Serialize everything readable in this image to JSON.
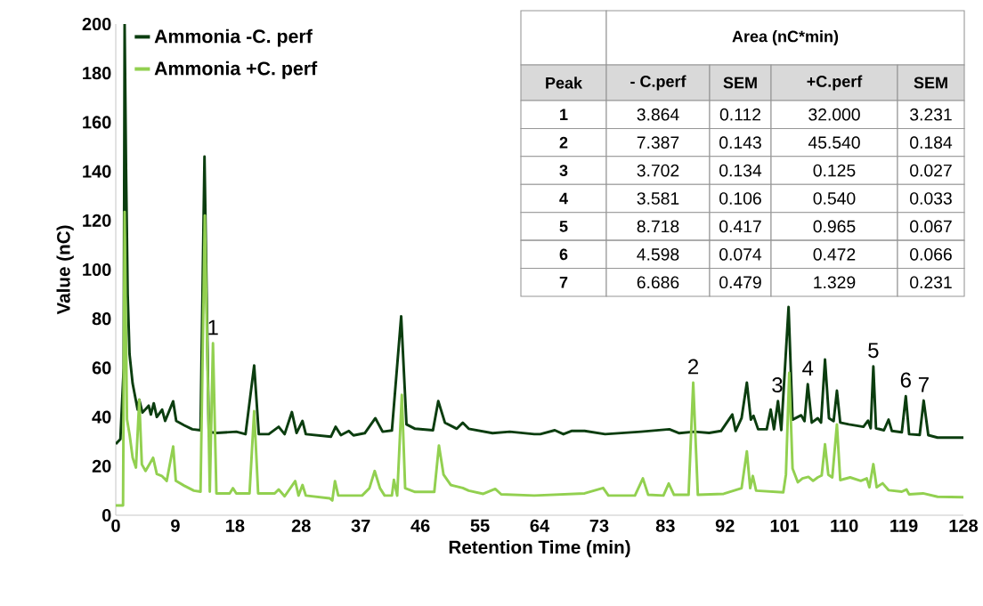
{
  "chart_data": {
    "type": "line",
    "xlabel": "Retention Time (min)",
    "ylabel": "Value (nC)",
    "xlim": [
      0,
      128
    ],
    "ylim": [
      0,
      200
    ],
    "xticks": [
      0,
      9,
      18,
      28,
      37,
      46,
      55,
      64,
      73,
      83,
      92,
      101,
      110,
      119,
      128
    ],
    "yticks": [
      0,
      20,
      40,
      60,
      80,
      100,
      120,
      140,
      160,
      180,
      200
    ],
    "grid": false,
    "legend": "top left",
    "marker": "none",
    "line_style": "solid",
    "series": [
      {
        "name": "Ammonia -C. perf",
        "color": "#0b3d0f",
        "x": [
          0,
          0.7,
          1.2,
          1.34,
          1.55,
          1.8,
          2.08,
          2.55,
          3.3,
          3.55,
          4.03,
          4.97,
          5.3,
          5.74,
          6.2,
          7.0,
          7.46,
          8.67,
          9.13,
          10.35,
          11.56,
          12.8,
          13.4,
          14.05,
          15.27,
          18.2,
          19.6,
          20.9,
          21.6,
          23.1,
          24.6,
          25.5,
          26.6,
          27.3,
          28.2,
          28.7,
          32.5,
          33.2,
          34.0,
          35.2,
          35.9,
          37.6,
          39.2,
          40.3,
          41.7,
          43.1,
          43.9,
          45.2,
          47.9,
          48.7,
          49.7,
          51.5,
          52.4,
          53.3,
          56.9,
          59.5,
          63.2,
          64.1,
          66.3,
          67.6,
          68.8,
          70.8,
          73.9,
          79.3,
          83.6,
          85.1,
          87.4,
          89.6,
          91.4,
          93.1,
          93.6,
          94.5,
          95.3,
          95.9,
          96.3,
          97.0,
          98.3,
          98.9,
          99.4,
          100.0,
          100.5,
          101.6,
          102.2,
          103.5,
          104.0,
          104.5,
          105.1,
          106.0,
          106.5,
          107.1,
          107.7,
          108.4,
          108.9,
          109.4,
          110.7,
          112.9,
          113.6,
          114.0,
          114.4,
          114.8,
          116.0,
          116.7,
          117.2,
          118.7,
          119.3,
          119.8,
          121.4,
          122.0,
          122.7,
          124.1,
          128
        ],
        "values": [
          29,
          31,
          60,
          200,
          142,
          90,
          65.6,
          53.6,
          43,
          47,
          41.8,
          44.6,
          41,
          45.6,
          40,
          43,
          38.4,
          46.4,
          38.4,
          36.6,
          35,
          34.6,
          146,
          33.9,
          33.5,
          34,
          33,
          61,
          33,
          33,
          36,
          33,
          42,
          33.5,
          38.4,
          33,
          32,
          36,
          32.6,
          34.3,
          32.5,
          33.4,
          39.5,
          34,
          34.5,
          81,
          37,
          35.2,
          34.6,
          46.5,
          37.7,
          35.2,
          37.7,
          35.2,
          33.4,
          34,
          33,
          33,
          34.6,
          33,
          34.3,
          34.3,
          33,
          34,
          35,
          33.4,
          34,
          33.5,
          34.3,
          41,
          34.3,
          39.5,
          54,
          38.9,
          40.5,
          35,
          35,
          43,
          35,
          46.5,
          34.7,
          84.8,
          38.9,
          40.7,
          38.3,
          53.4,
          37.7,
          39.5,
          37.7,
          63.4,
          39.5,
          38.3,
          50.7,
          37.7,
          37,
          36,
          38.5,
          35.4,
          60.6,
          35.4,
          34.6,
          38.9,
          34.3,
          33.8,
          48.5,
          33,
          32.7,
          46.7,
          32.6,
          31.6,
          31.6
        ]
      },
      {
        "name": "Ammonia +C. perf",
        "color": "#92d050",
        "x": [
          0,
          1.1,
          1.34,
          1.7,
          2.1,
          2.55,
          3.05,
          3.55,
          3.94,
          4.5,
          5.64,
          6.2,
          6.95,
          7.7,
          8.67,
          9.07,
          10.35,
          11.8,
          12.8,
          13.45,
          14.2,
          14.68,
          15.2,
          17.2,
          17.7,
          18.2,
          20.2,
          20.9,
          21.5,
          24.0,
          24.6,
          25.5,
          27.1,
          27.6,
          28.2,
          28.7,
          32.3,
          32.7,
          33.1,
          33.6,
          37.2,
          38.3,
          39.1,
          39.9,
          40.6,
          41.7,
          42.0,
          42.5,
          43.2,
          43.7,
          45.2,
          48.1,
          48.8,
          49.5,
          50.6,
          52.4,
          53.3,
          55.5,
          57.3,
          58.2,
          63.2,
          70.8,
          73.6,
          74.4,
          78.4,
          79.6,
          80.4,
          82.7,
          83.5,
          84.3,
          86.5,
          87.2,
          87.9,
          91.8,
          94.5,
          95.3,
          95.8,
          96.2,
          96.7,
          100.8,
          101.2,
          101.7,
          102.2,
          103.0,
          103.7,
          104.6,
          105.3,
          106.0,
          106.6,
          107.1,
          107.6,
          108.2,
          108.9,
          109.4,
          110.9,
          112.5,
          113.4,
          113.8,
          114.4,
          114.9,
          115.8,
          116.7,
          118.7,
          119.4,
          119.8,
          121.9,
          124.1,
          128
        ],
        "values": [
          4,
          4,
          123.5,
          39,
          32.6,
          23.4,
          19.4,
          47,
          20.7,
          18,
          23.4,
          16.8,
          16,
          14,
          28,
          14,
          12,
          10,
          9.6,
          122,
          9.6,
          70,
          8.9,
          8.9,
          11,
          8.9,
          8.9,
          42.4,
          8.9,
          8.9,
          10.5,
          7.7,
          13.9,
          8,
          12.3,
          8,
          6.9,
          6,
          13.9,
          8,
          8,
          11,
          18,
          11,
          8,
          8,
          14.4,
          8,
          49,
          11,
          9.5,
          9.5,
          28.4,
          16.5,
          12.3,
          11.1,
          10,
          8.7,
          10.7,
          8.5,
          8,
          8.9,
          11.1,
          8,
          8,
          15,
          8.3,
          8,
          12.9,
          8.3,
          8.3,
          54,
          8.3,
          8.7,
          11,
          26,
          11,
          16,
          10,
          9.3,
          16.6,
          58,
          19,
          13.4,
          15,
          15.6,
          14,
          15.4,
          16.2,
          28.9,
          16.5,
          15.4,
          37,
          14.3,
          15.4,
          14,
          15,
          11.4,
          20.8,
          11.4,
          13,
          10.2,
          9.6,
          10.5,
          8.5,
          8.9,
          7.5,
          7.3
        ]
      }
    ],
    "annotations": [
      "Area (nC*min)",
      "Peak",
      "- C.perf",
      "SEM",
      "+C.perf",
      "SEM",
      "1",
      "3.864",
      "0.112",
      "32.000",
      "3.231",
      "2",
      "7.387",
      "0.143",
      "45.540",
      "0.184",
      "3",
      "3.702",
      "0.134",
      "0.125",
      "0.027",
      "4",
      "3.581",
      "0.106",
      "0.540",
      "0.033",
      "5",
      "8.718",
      "0.417",
      "0.965",
      "0.067",
      "6",
      "4.598",
      "0.074",
      "0.472",
      "0.066",
      "7",
      "6.686",
      "0.479",
      "1.329",
      "0.231",
      {
        "text": "1",
        "x": 14.68,
        "y": 70
      },
      {
        "text": "2",
        "x": 87.2,
        "y": 54
      },
      {
        "text": "3",
        "x": 99.9,
        "y": 46.5
      },
      {
        "text": "4",
        "x": 104.5,
        "y": 53.4
      },
      {
        "text": "5",
        "x": 114.4,
        "y": 60.6
      },
      {
        "text": "6",
        "x": 119.3,
        "y": 48.5
      },
      {
        "text": "7",
        "x": 122.0,
        "y": 46.7
      }
    ]
  }
}
